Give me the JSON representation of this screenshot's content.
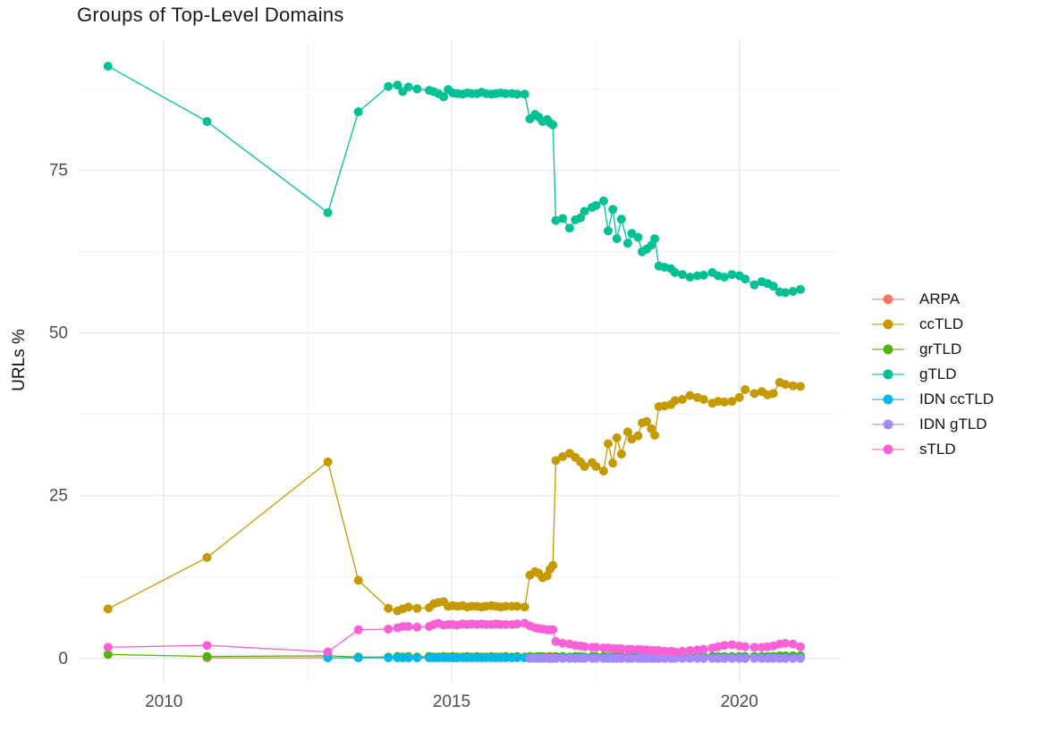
{
  "figure": {
    "title": "Groups of Top-Level Domains"
  },
  "chart_data": {
    "type": "line",
    "title": "Groups of Top-Level Domains",
    "xlabel": "",
    "ylabel": "URLs %",
    "legend_position": "right",
    "grid": true,
    "xlim": [
      2008.52,
      2021.76
    ],
    "ylim": [
      -3.6,
      95.0
    ],
    "x_ticks": {
      "values": [
        2010,
        2015,
        2020
      ],
      "labels": [
        "2010",
        "2015",
        "2020"
      ]
    },
    "x_minor": [
      2012.5,
      2017.5
    ],
    "y_ticks": {
      "values": [
        0,
        25,
        50,
        75
      ],
      "labels": [
        "0",
        "25",
        "50",
        "75"
      ]
    },
    "y_minor": [
      12.5,
      37.5,
      62.5,
      87.5
    ],
    "x_shared": [
      2009.03,
      2010.75,
      2012.85,
      2013.38,
      2013.9,
      2014.06,
      2014.15,
      2014.25,
      2014.4,
      2014.61,
      2014.69,
      2014.77,
      2014.86,
      2014.94,
      2015.02,
      2015.1,
      2015.19,
      2015.27,
      2015.35,
      2015.44,
      2015.52,
      2015.6,
      2015.69,
      2015.77,
      2015.85,
      2015.94,
      2016.05,
      2016.14,
      2016.27,
      2016.36,
      2016.45,
      2016.51,
      2016.58,
      2016.66,
      2016.71,
      2016.76,
      2016.81,
      2016.93,
      2017.05,
      2017.15,
      2017.24,
      2017.31,
      2017.44,
      2017.51,
      2017.64,
      2017.72,
      2017.8,
      2017.87,
      2017.95,
      2018.06,
      2018.13,
      2018.24,
      2018.31,
      2018.39,
      2018.47,
      2018.53,
      2018.6,
      2018.7,
      2018.81,
      2018.88,
      2019.01,
      2019.14,
      2019.27,
      2019.38,
      2019.53,
      2019.63,
      2019.74,
      2019.87,
      2020.0,
      2020.1,
      2020.26,
      2020.39,
      2020.49,
      2020.59,
      2020.7,
      2020.8,
      2020.93,
      2021.06
    ],
    "series": [
      {
        "name": "ARPA",
        "color": "#F8766D",
        "x_start": 1,
        "y": [
          0.1,
          0.1
        ]
      },
      {
        "name": "ccTLD",
        "color": "#C49A00",
        "x_start": 0,
        "y": [
          7.6,
          15.5,
          30.2,
          12.0,
          7.7,
          7.3,
          7.6,
          7.9,
          7.7,
          7.8,
          8.4,
          8.6,
          8.7,
          8.0,
          8.1,
          8.0,
          8.1,
          7.9,
          8.0,
          8.0,
          7.9,
          8.0,
          8.1,
          8.0,
          7.9,
          8.0,
          8.0,
          8.0,
          7.9,
          12.8,
          13.3,
          13.1,
          12.4,
          12.7,
          13.7,
          14.3,
          30.4,
          31.0,
          31.5,
          30.9,
          30.2,
          29.5,
          30.1,
          29.5,
          28.8,
          33.0,
          30.0,
          33.9,
          31.4,
          34.8,
          33.7,
          34.2,
          36.2,
          36.4,
          35.3,
          34.3,
          38.7,
          38.8,
          39.0,
          39.6,
          39.8,
          40.4,
          40.1,
          39.8,
          39.2,
          39.5,
          39.4,
          39.5,
          40.1,
          41.3,
          40.7,
          41.0,
          40.5,
          40.7,
          42.4,
          42.1,
          41.9,
          41.8
        ]
      },
      {
        "name": "grTLD",
        "color": "#53B400",
        "x_start": 0,
        "y": [
          0.6,
          0.3,
          0.4,
          0.2,
          0.2,
          0.3,
          0.2,
          0.3,
          0.2,
          0.3,
          0.2,
          0.2,
          0.3,
          0.2,
          0.3,
          0.2,
          0.2,
          0.3,
          0.2,
          0.3,
          0.2,
          0.2,
          0.3,
          0.2,
          0.2,
          0.3,
          0.2,
          0.3,
          0.2,
          0.3,
          0.2,
          0.3,
          0.3,
          0.2,
          0.3,
          0.2,
          0.3,
          0.3,
          0.2,
          0.3,
          0.3,
          0.2,
          0.3,
          0.3,
          0.3,
          0.2,
          0.3,
          0.3,
          0.3,
          0.2,
          0.3,
          0.3,
          0.3,
          0.3,
          0.3,
          0.3,
          0.3,
          0.3,
          0.3,
          0.3,
          0.3,
          0.3,
          0.3,
          0.3,
          0.3,
          0.3,
          0.3,
          0.3,
          0.3,
          0.3,
          0.3,
          0.3,
          0.3,
          0.3,
          0.4,
          0.4,
          0.4,
          0.4
        ]
      },
      {
        "name": "gTLD",
        "color": "#00C094",
        "x_start": 0,
        "y": [
          91.0,
          82.5,
          68.5,
          84.0,
          87.9,
          88.1,
          87.1,
          87.8,
          87.5,
          87.3,
          87.1,
          86.8,
          86.3,
          87.4,
          86.9,
          86.8,
          86.7,
          86.9,
          86.8,
          86.8,
          87.0,
          86.8,
          86.7,
          86.8,
          86.9,
          86.8,
          86.8,
          86.7,
          86.7,
          82.9,
          83.6,
          83.2,
          82.5,
          82.8,
          82.3,
          82.0,
          67.3,
          67.6,
          66.1,
          67.4,
          67.7,
          68.7,
          69.3,
          69.6,
          70.3,
          65.7,
          69.0,
          64.5,
          67.5,
          63.8,
          65.3,
          64.7,
          62.5,
          62.9,
          63.5,
          64.5,
          60.3,
          60.1,
          59.9,
          59.3,
          59.0,
          58.6,
          58.8,
          58.9,
          59.3,
          58.8,
          58.6,
          59.0,
          58.8,
          58.3,
          57.4,
          57.9,
          57.6,
          57.2,
          56.3,
          56.2,
          56.4,
          56.7
        ]
      },
      {
        "name": "IDN ccTLD",
        "color": "#00B6EB",
        "x_start": 2,
        "y_const": 0.1,
        "count": 76
      },
      {
        "name": "IDN gTLD",
        "color": "#A58AFF",
        "x_start": 29,
        "y_const": 0.0,
        "count": 49
      },
      {
        "name": "sTLD",
        "color": "#FB61D7",
        "x_start": 0,
        "y": [
          1.7,
          2.0,
          1.0,
          4.4,
          4.5,
          4.7,
          4.9,
          4.9,
          4.8,
          4.9,
          5.2,
          5.4,
          5.1,
          5.2,
          5.2,
          5.1,
          5.3,
          5.2,
          5.3,
          5.2,
          5.3,
          5.2,
          5.2,
          5.3,
          5.2,
          5.2,
          5.2,
          5.3,
          5.4,
          5.0,
          4.7,
          4.6,
          4.5,
          4.4,
          4.4,
          4.4,
          2.6,
          2.3,
          2.2,
          2.0,
          1.9,
          1.8,
          1.7,
          1.7,
          1.6,
          1.6,
          1.5,
          1.5,
          1.5,
          1.4,
          1.4,
          1.4,
          1.3,
          1.3,
          1.2,
          1.2,
          1.2,
          1.1,
          1.1,
          1.0,
          1.1,
          1.2,
          1.3,
          1.4,
          1.6,
          1.8,
          2.0,
          2.1,
          1.9,
          1.8,
          1.7,
          1.7,
          1.8,
          1.9,
          2.2,
          2.3,
          2.2,
          1.8
        ]
      }
    ]
  }
}
